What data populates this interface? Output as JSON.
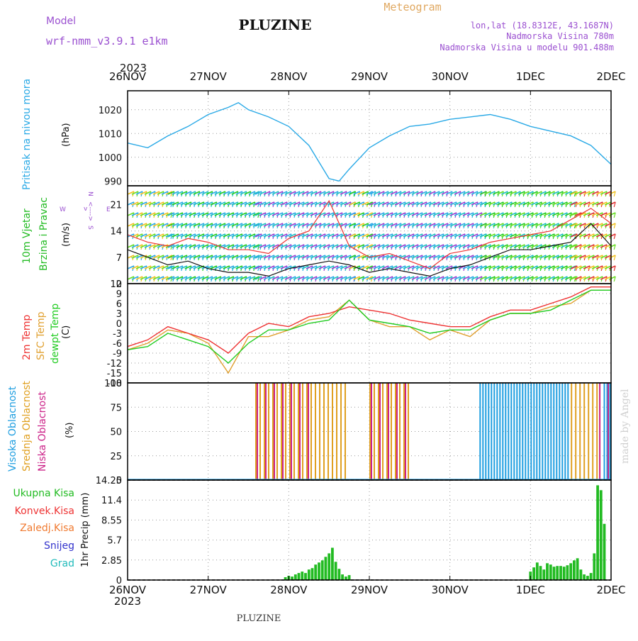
{
  "header": {
    "model_label": "Model",
    "model_name": "wrf-nmm_v3.9.1  e1km",
    "station": "PLUZINE",
    "meteogram_label": "Meteogram",
    "lonlat": "lon,lat (18.8312E, 43.1687N)",
    "elevation": "Nadmorska Visina 780m",
    "model_elevation": "Nadmorska Visina u modelu 901.488m",
    "footer_station": "PLUZINE",
    "watermark": "made by Angel"
  },
  "time_axis": {
    "year_top": "2023",
    "year_bottom": "2023",
    "ticks": [
      "26NOV",
      "27NOV",
      "28NOV",
      "29NOV",
      "30NOV",
      "1DEC",
      "2DEC"
    ]
  },
  "panels": {
    "pressure": {
      "label": "Pritisak na nivou mora",
      "unit": "(hPa)",
      "color": "#29a9e6",
      "ticks": [
        "1020",
        "1010",
        "1000",
        "990"
      ]
    },
    "wind": {
      "label1": "10m Vjetar",
      "label2": "Brzina i Pravac",
      "unit": "(m/s)",
      "ticks": [
        "21",
        "14",
        "7",
        "0"
      ],
      "compass": {
        "n": "N",
        "w": "W",
        "e": "E",
        "s": "S",
        "arrow_v": "v",
        "arrow_h": "<---->"
      }
    },
    "temperature": {
      "label_2m": "2m Temp",
      "label_sfc": "SFC Temp",
      "label_dew": "dewpt Temp",
      "unit": "(C)",
      "ticks": [
        "12",
        "9",
        "6",
        "3",
        "0",
        "-3",
        "-6",
        "-9",
        "-12",
        "-15",
        "-18"
      ],
      "colors": {
        "t2m": "#ee3333",
        "sfc": "#e0a030",
        "dew": "#22cc22"
      }
    },
    "clouds": {
      "label_high": "Visoka Oblacnost",
      "label_mid": "Srednja Oblacnost",
      "label_low": "Niska Oblacnost",
      "unit": "(%)",
      "ticks": [
        "100",
        "75",
        "50",
        "25",
        "0"
      ],
      "colors": {
        "high": "#1e9ee0",
        "mid": "#e0a020",
        "low": "#cc2288"
      }
    },
    "precip": {
      "labels": [
        "Ukupna Kisa",
        "Konvek.Kisa",
        "Zaledj.Kisa",
        "Snijeg",
        "Grad"
      ],
      "label_colors": [
        "#22bb22",
        "#ee3333",
        "#f07a30",
        "#3333cc",
        "#22bbbb"
      ],
      "unit": "1hr Precip (mm)",
      "ticks": [
        "14.25",
        "11.4",
        "8.55",
        "5.7",
        "2.85",
        "0"
      ]
    }
  },
  "chart_data": {
    "type": "line",
    "x_units": "day",
    "x_range_start": "2023-11-26",
    "x_range_end": "2023-12-02",
    "pressure": {
      "ylim": [
        988,
        1028
      ],
      "x": [
        "2023-11-26 00:00",
        "2023-11-26 06:00",
        "2023-11-26 12:00",
        "2023-11-26 18:00",
        "2023-11-27 00:00",
        "2023-11-27 06:00",
        "2023-11-27 09:00",
        "2023-11-27 12:00",
        "2023-11-27 18:00",
        "2023-11-28 00:00",
        "2023-11-28 06:00",
        "2023-11-28 12:00",
        "2023-11-28 15:00",
        "2023-11-28 18:00",
        "2023-11-29 00:00",
        "2023-11-29 06:00",
        "2023-11-29 12:00",
        "2023-11-29 18:00",
        "2023-11-30 00:00",
        "2023-11-30 06:00",
        "2023-11-30 12:00",
        "2023-11-30 18:00",
        "2023-12-01 00:00",
        "2023-12-01 06:00",
        "2023-12-01 12:00",
        "2023-12-01 18:00",
        "2023-12-02 00:00"
      ],
      "y": [
        1006,
        1004,
        1009,
        1013,
        1018,
        1021,
        1023,
        1020,
        1017,
        1013,
        1005,
        991,
        990,
        995,
        1004,
        1009,
        1013,
        1014,
        1016,
        1017,
        1018,
        1016,
        1013,
        1011,
        1009,
        1005,
        997
      ]
    },
    "wind_speed": {
      "ylim": [
        0,
        26
      ],
      "x": [
        "2023-11-26 00:00",
        "2023-11-26 06:00",
        "2023-11-26 12:00",
        "2023-11-26 18:00",
        "2023-11-27 00:00",
        "2023-11-27 06:00",
        "2023-11-27 12:00",
        "2023-11-27 18:00",
        "2023-11-28 00:00",
        "2023-11-28 06:00",
        "2023-11-28 12:00",
        "2023-11-28 18:00",
        "2023-11-29 00:00",
        "2023-11-29 06:00",
        "2023-11-29 12:00",
        "2023-11-29 18:00",
        "2023-11-30 00:00",
        "2023-11-30 06:00",
        "2023-11-30 12:00",
        "2023-11-30 18:00",
        "2023-12-01 00:00",
        "2023-12-01 06:00",
        "2023-12-01 12:00",
        "2023-12-01 18:00",
        "2023-12-02 00:00"
      ],
      "y": [
        9,
        7,
        5,
        6,
        4,
        3,
        3,
        2,
        4,
        5,
        6,
        5,
        3,
        4,
        3,
        2,
        4,
        5,
        7,
        9,
        9,
        10,
        11,
        16,
        10
      ],
      "gust_y": [
        13,
        11,
        10,
        12,
        11,
        9,
        9,
        8,
        12,
        14,
        22,
        10,
        7,
        8,
        6,
        4,
        8,
        9,
        11,
        12,
        13,
        14,
        17,
        20,
        16
      ]
    },
    "temperature": {
      "ylim": [
        -18,
        12
      ],
      "x": [
        "2023-11-26 00:00",
        "2023-11-26 06:00",
        "2023-11-26 12:00",
        "2023-11-26 18:00",
        "2023-11-27 00:00",
        "2023-11-27 06:00",
        "2023-11-27 12:00",
        "2023-11-27 18:00",
        "2023-11-28 00:00",
        "2023-11-28 06:00",
        "2023-11-28 12:00",
        "2023-11-28 18:00",
        "2023-11-29 00:00",
        "2023-11-29 06:00",
        "2023-11-29 12:00",
        "2023-11-29 18:00",
        "2023-11-30 00:00",
        "2023-11-30 06:00",
        "2023-11-30 12:00",
        "2023-11-30 18:00",
        "2023-12-01 00:00",
        "2023-12-01 06:00",
        "2023-12-01 12:00",
        "2023-12-01 18:00",
        "2023-12-02 00:00"
      ],
      "t2m": [
        -7,
        -5,
        -1,
        -3,
        -5,
        -9,
        -3,
        0,
        -1,
        2,
        3,
        5,
        4,
        3,
        1,
        0,
        -1,
        -1,
        2,
        4,
        4,
        6,
        8,
        11,
        11
      ],
      "sfc": [
        -8,
        -6,
        -2,
        -3,
        -6,
        -15,
        -4,
        -4,
        -2,
        1,
        2,
        7,
        1,
        -1,
        -1,
        -5,
        -2,
        -4,
        1,
        3,
        3,
        5,
        6,
        10,
        10
      ],
      "dew": [
        -8,
        -7,
        -3,
        -5,
        -7,
        -12,
        -6,
        -2,
        -2,
        0,
        1,
        7,
        1,
        0,
        -1,
        -3,
        -2,
        -2,
        1,
        3,
        3,
        4,
        7,
        10,
        10
      ]
    },
    "clouds": {
      "ylim": [
        0,
        100
      ],
      "high_cover_days": [
        [
          "2023-11-30 09:00",
          "2023-12-01 12:00"
        ],
        [
          "2023-12-01 22:00",
          "2023-12-02 00:00"
        ]
      ],
      "mid_cover_days": [
        [
          "2023-11-27 14:00",
          "2023-11-28 18:00"
        ],
        [
          "2023-11-29 00:00",
          "2023-11-29 12:00"
        ],
        [
          "2023-12-01 12:00",
          "2023-12-01 20:00"
        ]
      ],
      "low_cover_days": [
        [
          "2023-11-27 14:00",
          "2023-11-28 06:00"
        ],
        [
          "2023-11-29 00:00",
          "2023-11-29 12:00"
        ],
        [
          "2023-12-01 20:00",
          "2023-12-02 00:00"
        ]
      ]
    },
    "precip": {
      "ylim": [
        0,
        14.25
      ],
      "x": [
        "2023-11-27 23:00",
        "2023-11-28 00:00",
        "2023-11-28 01:00",
        "2023-11-28 02:00",
        "2023-11-28 03:00",
        "2023-11-28 04:00",
        "2023-11-28 05:00",
        "2023-11-28 06:00",
        "2023-11-28 07:00",
        "2023-11-28 08:00",
        "2023-11-28 09:00",
        "2023-11-28 10:00",
        "2023-11-28 11:00",
        "2023-11-28 12:00",
        "2023-11-28 13:00",
        "2023-11-28 14:00",
        "2023-11-28 15:00",
        "2023-11-28 16:00",
        "2023-11-28 17:00",
        "2023-11-28 18:00",
        "2023-12-01 00:00",
        "2023-12-01 01:00",
        "2023-12-01 02:00",
        "2023-12-01 03:00",
        "2023-12-01 04:00",
        "2023-12-01 05:00",
        "2023-12-01 06:00",
        "2023-12-01 07:00",
        "2023-12-01 08:00",
        "2023-12-01 09:00",
        "2023-12-01 10:00",
        "2023-12-01 11:00",
        "2023-12-01 12:00",
        "2023-12-01 13:00",
        "2023-12-01 14:00",
        "2023-12-01 15:00",
        "2023-12-01 16:00",
        "2023-12-01 17:00",
        "2023-12-01 18:00",
        "2023-12-01 19:00",
        "2023-12-01 20:00",
        "2023-12-01 21:00",
        "2023-12-01 22:00"
      ],
      "y": [
        0.4,
        0.6,
        0.5,
        0.8,
        1.0,
        1.2,
        1.0,
        1.5,
        1.7,
        2.2,
        2.5,
        2.8,
        3.3,
        3.8,
        4.6,
        2.6,
        1.6,
        0.8,
        0.5,
        0.7,
        1.2,
        1.8,
        2.5,
        2.0,
        1.5,
        2.4,
        2.2,
        1.9,
        2.0,
        2.0,
        1.9,
        2.1,
        2.4,
        2.8,
        3.1,
        1.5,
        0.8,
        0.6,
        1.0,
        3.8,
        13.5,
        12.8,
        8.0
      ]
    }
  }
}
